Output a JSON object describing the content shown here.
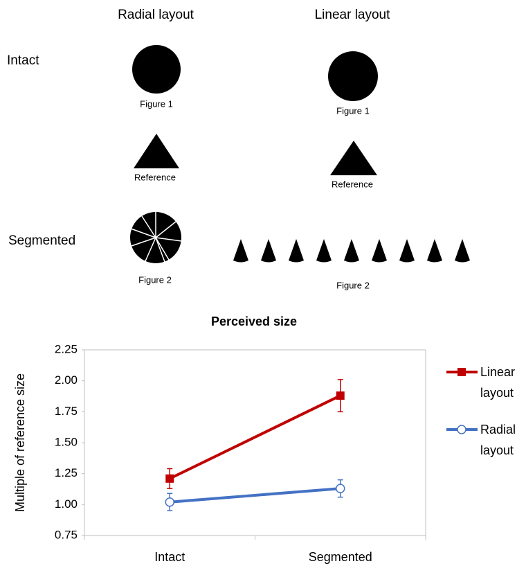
{
  "diagram": {
    "columns": [
      "Radial layout",
      "Linear layout"
    ],
    "rows": [
      "Intact",
      "Segmented"
    ],
    "radial": {
      "figure1": "Figure 1",
      "reference": "Reference",
      "figure2": "Figure 2"
    },
    "linear": {
      "figure1": "Figure 1",
      "reference": "Reference",
      "figure2": "Figure 2"
    }
  },
  "chart_data": {
    "type": "line",
    "title": "Perceived size",
    "y_label": "Multiple of reference size",
    "categories": [
      "Intact",
      "Segmented"
    ],
    "series": [
      {
        "name": "Linear layout",
        "color": "#c00000",
        "marker": "square",
        "values": [
          1.21,
          1.88
        ],
        "errors": [
          0.08,
          0.13
        ]
      },
      {
        "name": "Radial layout",
        "color": "#4472c4",
        "marker": "open-circle",
        "values": [
          1.02,
          1.13
        ],
        "errors": [
          0.07,
          0.07
        ]
      }
    ],
    "ylim": [
      0.75,
      2.25
    ],
    "yticks": [
      0.75,
      {
        "value": 1,
        "label": "1.00"
      },
      1.25,
      {
        "value": 1.5,
        "label": "1.50"
      },
      1.75,
      {
        "value": 2,
        "label": "2.00"
      },
      2.25
    ],
    "legend": "right",
    "grid": false
  }
}
